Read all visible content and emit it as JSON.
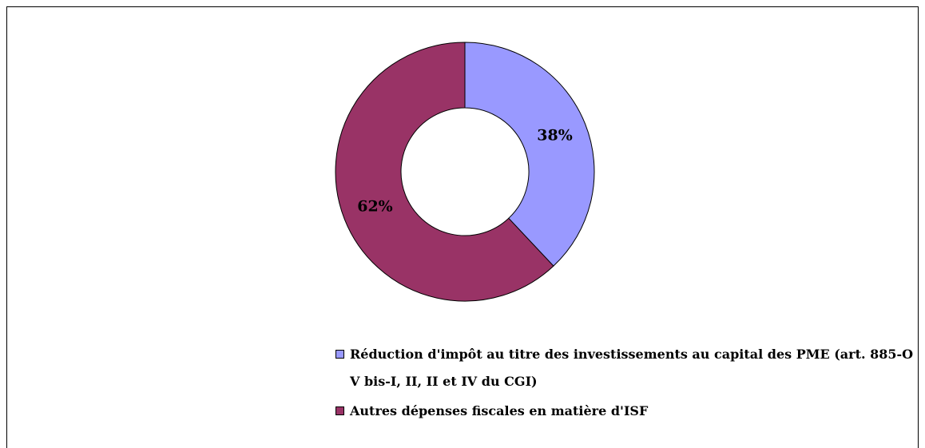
{
  "chart_data": {
    "type": "pie",
    "donut": true,
    "categories": [
      "Réduction d'impôt au titre des investissements au capital des PME (art. 885-O V bis-I, II, II et IV du CGI)",
      "Autres dépenses fiscales en matière d'ISF"
    ],
    "values": [
      38,
      62
    ],
    "value_labels": [
      "38%",
      "62%"
    ],
    "colors": [
      "#9999ff",
      "#993366"
    ]
  }
}
